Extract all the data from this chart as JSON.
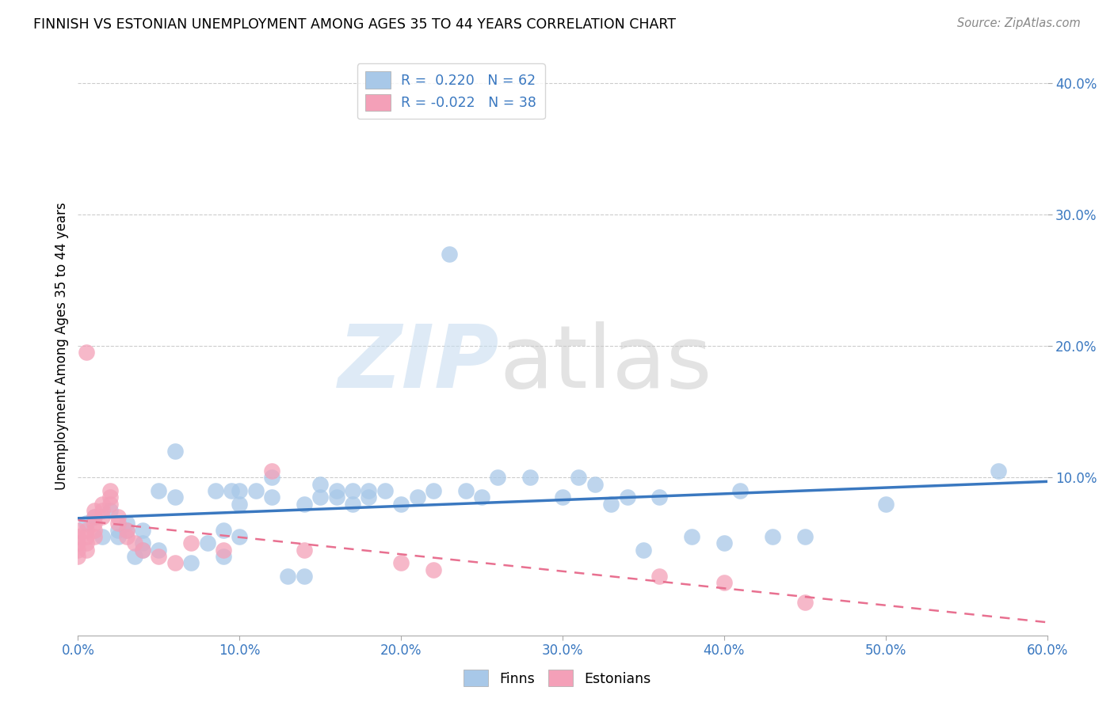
{
  "title": "FINNISH VS ESTONIAN UNEMPLOYMENT AMONG AGES 35 TO 44 YEARS CORRELATION CHART",
  "source": "Source: ZipAtlas.com",
  "ylabel": "Unemployment Among Ages 35 to 44 years",
  "xlim": [
    0.0,
    0.6
  ],
  "ylim": [
    -0.02,
    0.42
  ],
  "xticks": [
    0.0,
    0.1,
    0.2,
    0.3,
    0.4,
    0.5,
    0.6
  ],
  "xtick_labels": [
    "0.0%",
    "10.0%",
    "20.0%",
    "30.0%",
    "40.0%",
    "50.0%",
    "60.0%"
  ],
  "yticks": [
    0.1,
    0.2,
    0.3,
    0.4
  ],
  "ytick_labels": [
    "10.0%",
    "20.0%",
    "30.0%",
    "40.0%"
  ],
  "legend_finn_R": "R =  0.220",
  "legend_finn_N": "N = 62",
  "legend_est_R": "R = -0.022",
  "legend_est_N": "N = 38",
  "finn_color": "#a8c8e8",
  "estonian_color": "#f4a0b8",
  "finn_line_color": "#3a78c0",
  "estonian_line_color": "#e87090",
  "background_color": "#ffffff",
  "finn_x": [
    0.005,
    0.01,
    0.015,
    0.02,
    0.025,
    0.025,
    0.03,
    0.03,
    0.035,
    0.04,
    0.04,
    0.04,
    0.05,
    0.05,
    0.06,
    0.06,
    0.07,
    0.08,
    0.085,
    0.09,
    0.09,
    0.095,
    0.1,
    0.1,
    0.1,
    0.11,
    0.12,
    0.12,
    0.13,
    0.14,
    0.14,
    0.15,
    0.15,
    0.16,
    0.16,
    0.17,
    0.17,
    0.18,
    0.18,
    0.19,
    0.2,
    0.21,
    0.22,
    0.23,
    0.24,
    0.25,
    0.26,
    0.28,
    0.3,
    0.31,
    0.32,
    0.33,
    0.34,
    0.35,
    0.36,
    0.38,
    0.4,
    0.41,
    0.43,
    0.45,
    0.5,
    0.57
  ],
  "finn_y": [
    0.065,
    0.07,
    0.055,
    0.075,
    0.06,
    0.055,
    0.06,
    0.065,
    0.04,
    0.05,
    0.06,
    0.045,
    0.09,
    0.045,
    0.085,
    0.12,
    0.035,
    0.05,
    0.09,
    0.04,
    0.06,
    0.09,
    0.08,
    0.09,
    0.055,
    0.09,
    0.1,
    0.085,
    0.025,
    0.025,
    0.08,
    0.085,
    0.095,
    0.085,
    0.09,
    0.09,
    0.08,
    0.085,
    0.09,
    0.09,
    0.08,
    0.085,
    0.09,
    0.27,
    0.09,
    0.085,
    0.1,
    0.1,
    0.085,
    0.1,
    0.095,
    0.08,
    0.085,
    0.045,
    0.085,
    0.055,
    0.05,
    0.09,
    0.055,
    0.055,
    0.08,
    0.105
  ],
  "est_x": [
    0.0,
    0.0,
    0.0,
    0.0,
    0.0,
    0.005,
    0.005,
    0.005,
    0.005,
    0.005,
    0.01,
    0.01,
    0.01,
    0.01,
    0.01,
    0.015,
    0.015,
    0.015,
    0.02,
    0.02,
    0.02,
    0.025,
    0.025,
    0.03,
    0.03,
    0.035,
    0.04,
    0.05,
    0.06,
    0.07,
    0.09,
    0.12,
    0.14,
    0.2,
    0.22,
    0.36,
    0.4,
    0.45
  ],
  "est_y": [
    0.06,
    0.055,
    0.05,
    0.045,
    0.04,
    0.06,
    0.055,
    0.05,
    0.045,
    0.195,
    0.07,
    0.065,
    0.06,
    0.055,
    0.075,
    0.08,
    0.075,
    0.07,
    0.09,
    0.085,
    0.08,
    0.07,
    0.065,
    0.06,
    0.055,
    0.05,
    0.045,
    0.04,
    0.035,
    0.05,
    0.045,
    0.105,
    0.045,
    0.035,
    0.03,
    0.025,
    0.02,
    0.005
  ]
}
